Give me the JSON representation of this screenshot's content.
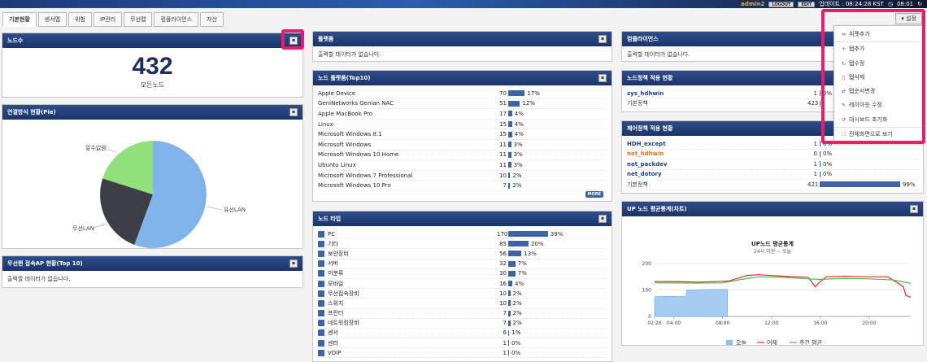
{
  "topbar": {
    "user": "admin2",
    "logout": "LOGOUT",
    "edit": "EDIT",
    "update_label": "업데이트 : 08:24:28 KST",
    "clock": "08:01"
  },
  "tabs": [
    "기본현황",
    "센서맵",
    "위험",
    "IP관리",
    "무선맵",
    "컴플라이언스",
    "자산"
  ],
  "settings": {
    "label": "설정"
  },
  "colors": {
    "header": "#1b346b",
    "bar": "#3d62a6",
    "highlight": "#e0206a",
    "pie_wired": "#7fb3ea",
    "pie_wireless": "#3d3e46",
    "pie_unknown": "#90e07c"
  },
  "node_count": {
    "title": "노드수",
    "value": "432",
    "label": "모든노드"
  },
  "connection_pie": {
    "title": "연결방식 현황(Pie)",
    "labels": [
      "유선LAN",
      "무선LAN",
      "알수없음"
    ]
  },
  "wireless_ap": {
    "title": "무선랜 접속AP 현황(Top 10)",
    "empty": "출력할 데이터가 없습니다."
  },
  "platform": {
    "title": "플랫폼",
    "empty": "출력할 데이터가 없습니다."
  },
  "node_platform": {
    "title": "노드 플랫폼(Top10)",
    "more": "MORE",
    "rows": [
      {
        "name": "Apple Device",
        "count": "70",
        "pct": "17%",
        "frac": 0.17
      },
      {
        "name": "GeniNetworks Genian NAC",
        "count": "51",
        "pct": "12%",
        "frac": 0.12
      },
      {
        "name": "Apple MacBook Pro",
        "count": "17",
        "pct": "4%",
        "frac": 0.04
      },
      {
        "name": "Linux",
        "count": "15",
        "pct": "4%",
        "frac": 0.04
      },
      {
        "name": "Microsoft Windows 8.1",
        "count": "15",
        "pct": "4%",
        "frac": 0.04
      },
      {
        "name": "Microsoft Windows",
        "count": "11",
        "pct": "3%",
        "frac": 0.03
      },
      {
        "name": "Microsoft Windows 10 Home",
        "count": "11",
        "pct": "3%",
        "frac": 0.03
      },
      {
        "name": "Ubuntu Linux",
        "count": "11",
        "pct": "3%",
        "frac": 0.03
      },
      {
        "name": "Microsoft Windows 7 Professional",
        "count": "10",
        "pct": "2%",
        "frac": 0.02
      },
      {
        "name": "Microsoft Windows 10 Pro",
        "count": "7",
        "pct": "2%",
        "frac": 0.02
      }
    ]
  },
  "node_type": {
    "title": "노드 타입",
    "rows": [
      {
        "name": "PC",
        "count": "170",
        "pct": "39%",
        "frac": 0.39
      },
      {
        "name": "기타",
        "count": "85",
        "pct": "20%",
        "frac": 0.2
      },
      {
        "name": "보안장비",
        "count": "56",
        "pct": "13%",
        "frac": 0.13
      },
      {
        "name": "서버",
        "count": "32",
        "pct": "7%",
        "frac": 0.07
      },
      {
        "name": "미분류",
        "count": "30",
        "pct": "7%",
        "frac": 0.07
      },
      {
        "name": "모바일",
        "count": "16",
        "pct": "4%",
        "frac": 0.04
      },
      {
        "name": "무선접속장비",
        "count": "10",
        "pct": "2%",
        "frac": 0.02
      },
      {
        "name": "스위치",
        "count": "10",
        "pct": "2%",
        "frac": 0.02
      },
      {
        "name": "프린터",
        "count": "7",
        "pct": "2%",
        "frac": 0.02
      },
      {
        "name": "네트워킹장비",
        "count": "7",
        "pct": "2%",
        "frac": 0.02
      },
      {
        "name": "센서",
        "count": "6",
        "pct": "1%",
        "frac": 0.01
      },
      {
        "name": "센터",
        "count": "1",
        "pct": "0%",
        "frac": 0.0
      },
      {
        "name": "VOIP",
        "count": "1",
        "pct": "0%",
        "frac": 0.0
      }
    ]
  },
  "compliance": {
    "title": "컴플라이언스",
    "empty": "출력할 데이터가 없습니다."
  },
  "node_policy": {
    "title": "노드정책 적용 현황",
    "rows": [
      {
        "name": "sys_hdhwin",
        "count": "1",
        "pct": "0%",
        "frac": 0.0,
        "style": "link"
      },
      {
        "name": "기본정책",
        "count": "423",
        "pct": "",
        "frac": 0.0,
        "style": "plain"
      }
    ]
  },
  "control_policy": {
    "title": "제어정책 적용 현황",
    "rows": [
      {
        "name": "HDH_except",
        "count": "1",
        "pct": "0%",
        "frac": 0.0,
        "style": "link"
      },
      {
        "name": "net_hdhwin",
        "count": "0",
        "pct": "0%",
        "frac": 0.0,
        "style": "orange"
      },
      {
        "name": "net_packdev",
        "count": "1",
        "pct": "0%",
        "frac": 0.0,
        "style": "link"
      },
      {
        "name": "net_dotory",
        "count": "1",
        "pct": "0%",
        "frac": 0.0,
        "style": "link"
      },
      {
        "name": "기본정책",
        "count": "421",
        "pct": "99%",
        "frac": 0.99,
        "style": "plain"
      }
    ]
  },
  "up_node_chart_panel": {
    "title": "UP 노드 평균통계(차트)"
  },
  "chart_data": {
    "type": "line",
    "title": "UP노드 평균통계",
    "subtitle": "24시 이전 ~ 오늘",
    "x_ticks": [
      "02:26",
      "04:00",
      "08:00",
      "12:00",
      "16:00",
      "20:00"
    ],
    "y_ticks": [
      0,
      100,
      200
    ],
    "ylim": [
      0,
      200
    ],
    "xlim_hours": [
      2.43,
      23.4
    ],
    "series": [
      {
        "name": "오늘",
        "type": "area",
        "color": "#8ec0ee",
        "points": [
          [
            2.43,
            75
          ],
          [
            5.0,
            77
          ],
          [
            5.05,
            100
          ],
          [
            7.0,
            102
          ],
          [
            8.4,
            102
          ]
        ]
      },
      {
        "name": "어제",
        "type": "line",
        "color": "#e02a2a",
        "points": [
          [
            2.43,
            132
          ],
          [
            4.0,
            132
          ],
          [
            6.0,
            130
          ],
          [
            8.0,
            133
          ],
          [
            8.5,
            134
          ],
          [
            10.0,
            155
          ],
          [
            11.0,
            158
          ],
          [
            13.0,
            152
          ],
          [
            15.0,
            148
          ],
          [
            15.3,
            130
          ],
          [
            15.6,
            112
          ],
          [
            15.9,
            128
          ],
          [
            16.5,
            150
          ],
          [
            18.0,
            152
          ],
          [
            20.0,
            150
          ],
          [
            21.5,
            150
          ],
          [
            22.3,
            128
          ],
          [
            22.8,
            112
          ],
          [
            23.0,
            80
          ],
          [
            23.4,
            72
          ]
        ]
      },
      {
        "name": "주간 평균",
        "type": "line",
        "color": "#4cb848",
        "points": [
          [
            2.43,
            127
          ],
          [
            6.0,
            126
          ],
          [
            8.0,
            127
          ],
          [
            9.5,
            140
          ],
          [
            11.0,
            150
          ],
          [
            13.0,
            148
          ],
          [
            15.0,
            142
          ],
          [
            16.0,
            140
          ],
          [
            18.0,
            144
          ],
          [
            20.0,
            142
          ],
          [
            22.0,
            138
          ],
          [
            23.4,
            125
          ]
        ]
      }
    ],
    "legend": [
      "오늘",
      "어제",
      "주간 평균"
    ],
    "legend_position": "bottom"
  },
  "menu": {
    "items": [
      {
        "label": "위젯추가",
        "icon": "link-icon"
      },
      {
        "label": "탭추가",
        "icon": "plus-icon"
      },
      {
        "label": "탭수정",
        "icon": "refresh-icon"
      },
      {
        "label": "탭삭제",
        "icon": "trash-icon"
      },
      {
        "label": "탭순서변경",
        "icon": "arrows-icon"
      },
      {
        "label": "레이아웃 수정",
        "icon": "pencil-icon"
      },
      {
        "label": "대시보드 초기화",
        "icon": "reset-icon"
      },
      {
        "label": "전체화면으로 보기",
        "icon": "fullscreen-icon"
      }
    ]
  }
}
